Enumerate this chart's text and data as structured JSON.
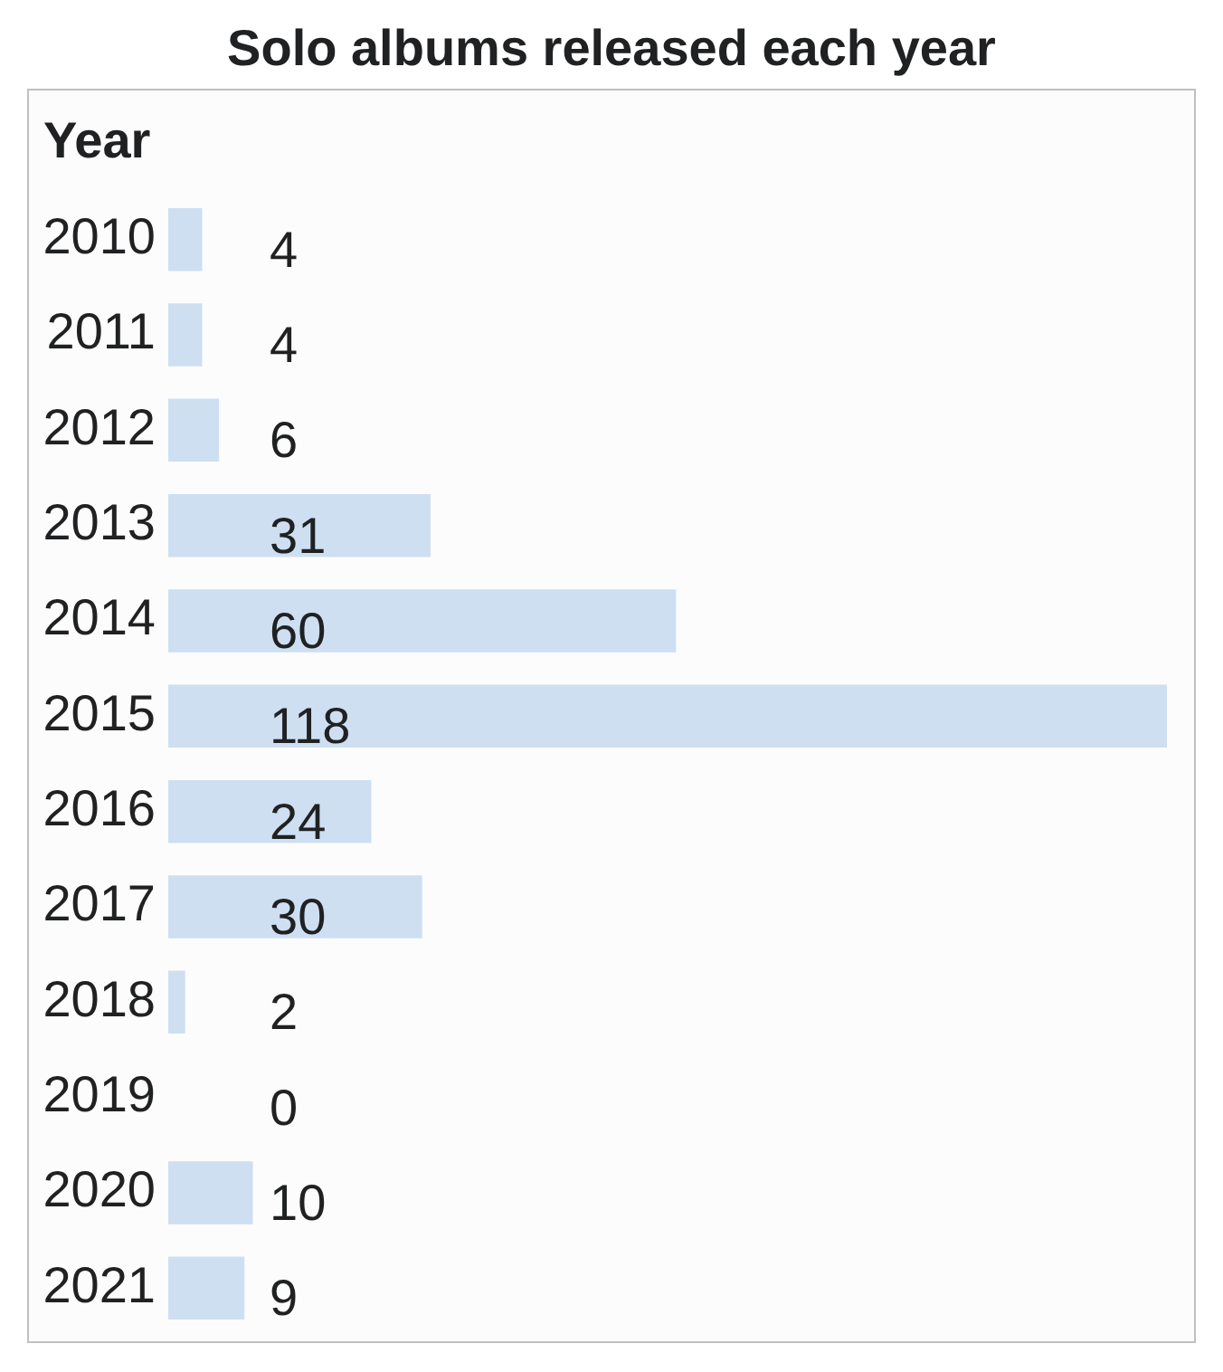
{
  "chart_data": {
    "type": "bar",
    "title": "Solo albums released each year",
    "ylabel": "Year",
    "orientation": "horizontal",
    "categories": [
      "2010",
      "2011",
      "2012",
      "2013",
      "2014",
      "2015",
      "2016",
      "2017",
      "2018",
      "2019",
      "2020",
      "2021"
    ],
    "values": [
      4,
      4,
      6,
      31,
      60,
      118,
      24,
      30,
      2,
      0,
      10,
      9
    ],
    "color": "#cedff2",
    "xlim": [
      0,
      118
    ],
    "tick_labels": "y",
    "data_labels": true
  }
}
